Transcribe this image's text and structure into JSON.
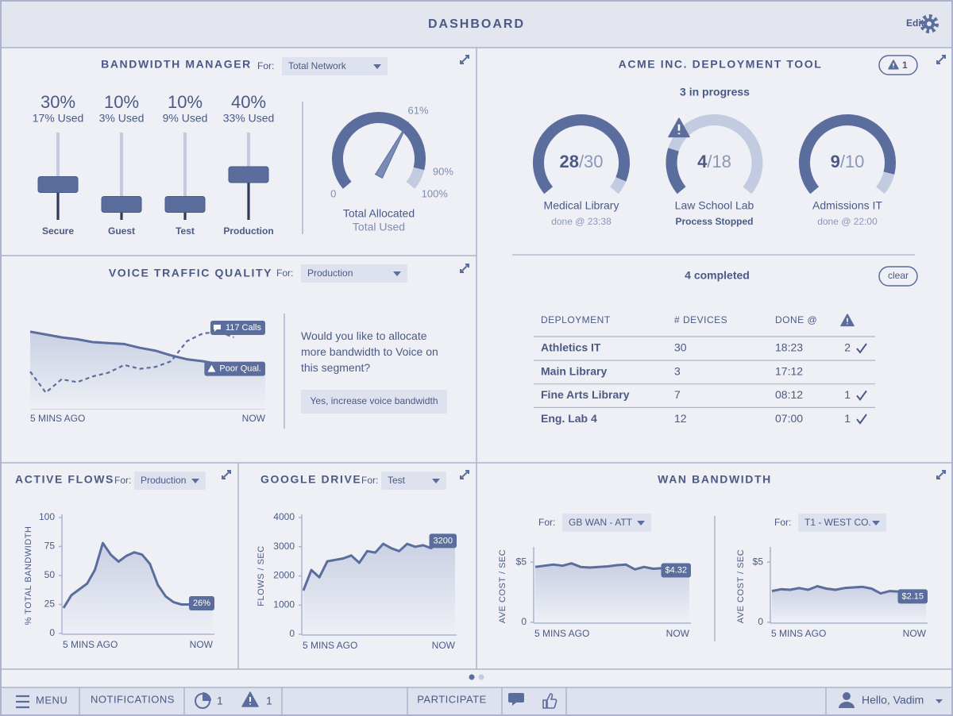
{
  "header": {
    "title": "DASHBOARD",
    "edit": "Edit"
  },
  "bandwidth_manager": {
    "title": "BANDWIDTH MANAGER",
    "for": "For:",
    "select": "Total Network",
    "sliders": {
      "names": [
        "Secure",
        "Guest",
        "Test",
        "Production"
      ],
      "values": [
        30,
        10,
        10,
        40
      ],
      "value_labels": [
        "30%",
        "10%",
        "10%",
        "40%"
      ],
      "used": [
        "17% Used",
        "3% Used",
        "9% Used",
        "33% Used"
      ]
    },
    "gauge": {
      "ticks": [
        0,
        {
          "value": 90,
          "label": "90%"
        },
        {
          "value": 100,
          "label": "100%"
        }
      ],
      "allocated": 90,
      "used": 61,
      "used_label": "61%",
      "legend": [
        "Total Allocated",
        "Total Used"
      ]
    }
  },
  "deployment_tool": {
    "title": "ACME INC. DEPLOYMENT TOOL",
    "alerts": 1,
    "in_progress": "3 in progress",
    "jobs": [
      {
        "name": "Medical Library",
        "done": 28,
        "total": 30,
        "total_label": "/30",
        "status": "done @ 23:38"
      },
      {
        "name": "Law School Lab",
        "done": 4,
        "total": 18,
        "total_label": "/18",
        "status": "Process Stopped"
      },
      {
        "name": "Admissions IT",
        "done": 9,
        "total": 10,
        "total_label": "/10",
        "status": "done @ 22:00"
      }
    ],
    "completed": "4  completed",
    "clear": "clear",
    "table": {
      "columns": [
        "DEPLOYMENT",
        "# DEVICES",
        "DONE @"
      ],
      "rows": [
        {
          "name": "Athletics IT",
          "devices": 30,
          "done": "18:23",
          "warnings": 2
        },
        {
          "name": "Main Library",
          "devices": 3,
          "done": "17:12"
        },
        {
          "name": "Fine Arts Library",
          "devices": 7,
          "done": "08:12",
          "warnings": 1
        },
        {
          "name": "Eng. Lab 4",
          "devices": 12,
          "done": "07:00",
          "warnings": 1
        }
      ]
    }
  },
  "voice_traffic": {
    "title": "VOICE TRAFFIC QUALITY",
    "for": "For:",
    "select": "Production",
    "chart": {
      "type": "line",
      "ylim": [
        0,
        100
      ],
      "x_labels": [
        "5 MINS AGO",
        "NOW"
      ],
      "series": [
        {
          "name": "117 Calls",
          "color": "#5a6d9c",
          "style": "dashed",
          "values": [
            39,
            17,
            31,
            28,
            34,
            38,
            46,
            42,
            44,
            50,
            71,
            79,
            81,
            75,
            null,
            null
          ]
        },
        {
          "name": "Poor Qual.",
          "color": "#5a6d9c",
          "style": "solid",
          "area": true,
          "values": [
            81,
            78,
            75,
            73,
            70,
            69,
            68,
            64,
            61,
            56,
            52,
            50,
            47,
            43,
            39,
            37
          ]
        }
      ]
    },
    "prompt": "Would you like to allocate more bandwidth to Voice on this segment?",
    "button": "Yes, increase voice bandwidth"
  },
  "active_flows": {
    "title": "ACTIVE FLOWS",
    "for": "For:",
    "select": "Production",
    "chart": {
      "type": "line",
      "y_label": "% TOTAL BANDWIDTH",
      "ylim": [
        0,
        100
      ],
      "yticks": [
        0,
        25,
        50,
        75,
        100
      ],
      "x_labels": [
        "5 MINS AGO",
        "NOW"
      ],
      "color": "#5a6d9c",
      "values": [
        22,
        33,
        38,
        43,
        55,
        78,
        68,
        62,
        67,
        70,
        68,
        60,
        42,
        32,
        27,
        25,
        25,
        26,
        26,
        26
      ],
      "value_labels": [
        null,
        null,
        null,
        null,
        null,
        null,
        null,
        null,
        null,
        null,
        null,
        null,
        null,
        null,
        null,
        null,
        null,
        null,
        null,
        "26%"
      ]
    }
  },
  "google_drive": {
    "title": "GOOGLE DRIVE",
    "for": "For:",
    "select": "Test",
    "chart": {
      "type": "line",
      "y_label": "FLOWS / SEC",
      "ylim": [
        0,
        4000
      ],
      "yticks": [
        0,
        1000,
        2000,
        3000,
        4000
      ],
      "x_labels": [
        "5 MINS AGO",
        "NOW"
      ],
      "color": "#5a6d9c",
      "values": [
        1500,
        2200,
        1950,
        2500,
        2550,
        2600,
        2700,
        2450,
        2850,
        2800,
        3100,
        2950,
        2850,
        3100,
        3000,
        3050,
        2950,
        3150,
        3100,
        3200
      ]
    }
  },
  "wan_bandwidth": {
    "title": "WAN BANDWIDTH",
    "charts": [
      {
        "type": "line",
        "for": "For:",
        "select": "GB WAN - ATT",
        "y_label": "AVE COST / SEC",
        "ylim": [
          0,
          6
        ],
        "yticks": [
          0,
          {
            "value": 5,
            "label": "$5"
          }
        ],
        "x_labels": [
          "5 MINS AGO",
          "NOW"
        ],
        "color": "#5a6d9c",
        "values": [
          4.6,
          4.7,
          4.8,
          4.7,
          4.9,
          4.6,
          4.55,
          4.6,
          4.65,
          4.75,
          4.8,
          4.4,
          4.6,
          4.45,
          4.5,
          4.3,
          4.45,
          4.32
        ],
        "value_labels": [
          null,
          null,
          null,
          null,
          null,
          null,
          null,
          null,
          null,
          null,
          null,
          null,
          null,
          null,
          null,
          null,
          null,
          "$4.32"
        ]
      },
      {
        "type": "line",
        "for": "For:",
        "select": "T1 - WEST CO.",
        "y_label": "AVE COST / SEC",
        "ylim": [
          0,
          6
        ],
        "yticks": [
          0,
          {
            "value": 5,
            "label": "$5"
          }
        ],
        "x_labels": [
          "5 MINS AGO",
          "NOW"
        ],
        "color": "#5a6d9c",
        "values": [
          2.6,
          2.75,
          2.7,
          2.85,
          2.7,
          3.0,
          2.8,
          2.7,
          2.85,
          2.9,
          2.95,
          2.8,
          2.4,
          2.6,
          2.55,
          2.4,
          2.6,
          2.15
        ],
        "value_labels": [
          null,
          null,
          null,
          null,
          null,
          null,
          null,
          null,
          null,
          null,
          null,
          null,
          null,
          null,
          null,
          null,
          null,
          "$2.15"
        ]
      }
    ]
  },
  "footer": {
    "menu": "MENU",
    "notifications": "NOTIFICATIONS",
    "notification_counts": [
      1,
      1
    ],
    "participate": "PARTICIPATE",
    "user": "Hello, Vadim"
  }
}
